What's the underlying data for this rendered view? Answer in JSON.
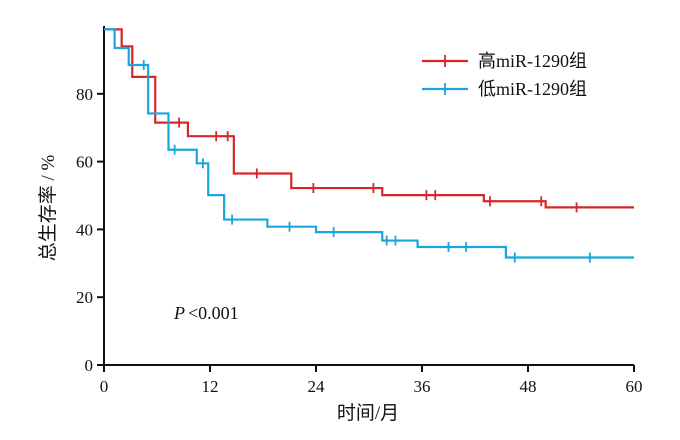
{
  "chart_data": {
    "type": "line",
    "subtype": "kaplan-meier",
    "xlabel": "时间/月",
    "ylabel": "总生存率 / %",
    "xlim": [
      0,
      60
    ],
    "ylim": [
      0,
      100
    ],
    "xticks": [
      "0",
      "12",
      "24",
      "36",
      "48",
      "60"
    ],
    "yticks": [
      "0",
      "20",
      "40",
      "60",
      "80"
    ],
    "grid": false,
    "legend_position": "top-right",
    "annotation": {
      "prefix": "P",
      "text": "<0.001"
    },
    "series": [
      {
        "name": "高miR-1290组",
        "color": "#d62728",
        "steps": [
          [
            0,
            99
          ],
          [
            2,
            94
          ],
          [
            3.2,
            85
          ],
          [
            5.8,
            71.5
          ],
          [
            9.5,
            67.5
          ],
          [
            14.7,
            56.5
          ],
          [
            21.2,
            52.2
          ],
          [
            31.5,
            50.1
          ],
          [
            43,
            48.3
          ],
          [
            50,
            46.5
          ],
          [
            60,
            46.5
          ]
        ],
        "censors": [
          [
            8.5,
            71.5
          ],
          [
            12.7,
            67.5
          ],
          [
            14,
            67.5
          ],
          [
            17.3,
            56.5
          ],
          [
            23.7,
            52.2
          ],
          [
            30.5,
            52.2
          ],
          [
            36.5,
            50.1
          ],
          [
            37.5,
            50.1
          ],
          [
            43.7,
            48.3
          ],
          [
            49.5,
            48.3
          ],
          [
            53.5,
            46.5
          ]
        ]
      },
      {
        "name": "低miR-1290组",
        "color": "#1aa6dc",
        "steps": [
          [
            0,
            99
          ],
          [
            1.2,
            93.5
          ],
          [
            2.8,
            88.5
          ],
          [
            5,
            74.2
          ],
          [
            7.3,
            63.5
          ],
          [
            10.5,
            59.5
          ],
          [
            11.8,
            50.1
          ],
          [
            13.6,
            42.9
          ],
          [
            18.5,
            40.8
          ],
          [
            24,
            39.2
          ],
          [
            31.5,
            36.7
          ],
          [
            35.5,
            34.8
          ],
          [
            45.5,
            31.7
          ],
          [
            60,
            31.7
          ]
        ],
        "censors": [
          [
            4.5,
            88.5
          ],
          [
            8,
            63.5
          ],
          [
            11.2,
            59.5
          ],
          [
            14.5,
            42.9
          ],
          [
            21,
            40.8
          ],
          [
            26,
            39.2
          ],
          [
            32,
            36.7
          ],
          [
            33,
            36.7
          ],
          [
            39,
            34.8
          ],
          [
            41,
            34.8
          ],
          [
            46.5,
            31.7
          ],
          [
            55,
            31.7
          ]
        ]
      }
    ]
  }
}
